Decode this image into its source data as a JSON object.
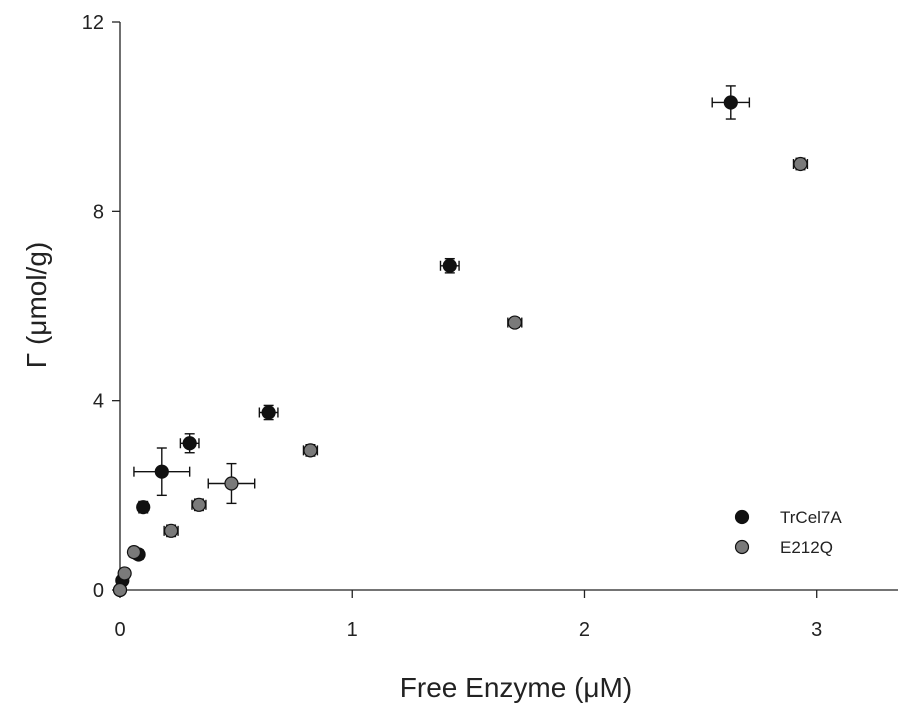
{
  "chart_data": {
    "type": "scatter",
    "title": "",
    "xlabel": "Free Enzyme  (μM)",
    "ylabel": "Γ  (μmol/g)",
    "xlim": [
      0,
      3.35
    ],
    "ylim": [
      0,
      12
    ],
    "xticks": [
      0,
      1,
      2,
      3
    ],
    "yticks": [
      0,
      4,
      8,
      12
    ],
    "grid": false,
    "legend": "bottom-right",
    "series": [
      {
        "name": "TrCel7A",
        "color": "#111111",
        "points": [
          {
            "x": 0.0,
            "y": 0.0,
            "xerr": 0.0,
            "yerr": 0.0
          },
          {
            "x": 0.01,
            "y": 0.2,
            "xerr": 0.01,
            "yerr": 0.05
          },
          {
            "x": 0.08,
            "y": 0.75,
            "xerr": 0.02,
            "yerr": 0.1
          },
          {
            "x": 0.1,
            "y": 1.75,
            "xerr": 0.02,
            "yerr": 0.12
          },
          {
            "x": 0.18,
            "y": 2.5,
            "xerr": 0.12,
            "yerr": 0.5
          },
          {
            "x": 0.3,
            "y": 3.1,
            "xerr": 0.04,
            "yerr": 0.2
          },
          {
            "x": 0.64,
            "y": 3.75,
            "xerr": 0.04,
            "yerr": 0.15
          },
          {
            "x": 1.42,
            "y": 6.85,
            "xerr": 0.04,
            "yerr": 0.15
          },
          {
            "x": 2.63,
            "y": 10.3,
            "xerr": 0.08,
            "yerr": 0.35
          }
        ]
      },
      {
        "name": "E212Q",
        "color": "#7a7a7a",
        "points": [
          {
            "x": 0.0,
            "y": 0.0,
            "xerr": 0.0,
            "yerr": 0.0
          },
          {
            "x": 0.02,
            "y": 0.35,
            "xerr": 0.02,
            "yerr": 0.08
          },
          {
            "x": 0.06,
            "y": 0.8,
            "xerr": 0.02,
            "yerr": 0.1
          },
          {
            "x": 0.22,
            "y": 1.25,
            "xerr": 0.03,
            "yerr": 0.12
          },
          {
            "x": 0.34,
            "y": 1.8,
            "xerr": 0.03,
            "yerr": 0.12
          },
          {
            "x": 0.48,
            "y": 2.25,
            "xerr": 0.1,
            "yerr": 0.42
          },
          {
            "x": 0.82,
            "y": 2.95,
            "xerr": 0.03,
            "yerr": 0.12
          },
          {
            "x": 1.7,
            "y": 5.65,
            "xerr": 0.03,
            "yerr": 0.1
          },
          {
            "x": 2.93,
            "y": 9.0,
            "xerr": 0.03,
            "yerr": 0.12
          }
        ]
      }
    ]
  }
}
